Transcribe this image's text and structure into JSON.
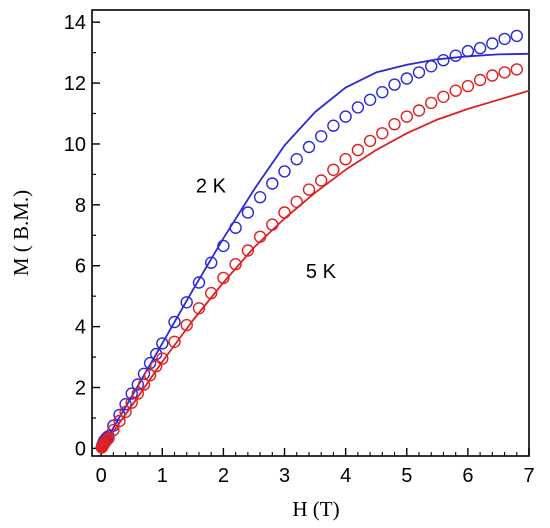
{
  "chart_data": {
    "type": "scatter",
    "xlabel": "H (T)",
    "ylabel": "M ( B.M.)",
    "xlim": [
      -0.15,
      7.0
    ],
    "ylim": [
      -0.25,
      14.4
    ],
    "x_ticks": [
      0,
      1,
      2,
      3,
      4,
      5,
      6,
      7
    ],
    "y_ticks": [
      0,
      2,
      4,
      6,
      8,
      10,
      12,
      14
    ],
    "grid": false,
    "annotations": [
      {
        "text": "2 K",
        "x": 1.55,
        "y": 8.4
      },
      {
        "text": "5 K",
        "x": 3.35,
        "y": 5.6
      }
    ],
    "series": [
      {
        "color": "#2a2ad6",
        "markers": [
          [
            0.01,
            0.05
          ],
          [
            0.02,
            0.1
          ],
          [
            0.03,
            0.15
          ],
          [
            0.04,
            0.2
          ],
          [
            0.05,
            0.25
          ],
          [
            0.07,
            0.3
          ],
          [
            0.09,
            0.35
          ],
          [
            0.12,
            0.4
          ],
          [
            0.2,
            0.75
          ],
          [
            0.3,
            1.1
          ],
          [
            0.4,
            1.45
          ],
          [
            0.5,
            1.8
          ],
          [
            0.6,
            2.1
          ],
          [
            0.7,
            2.45
          ],
          [
            0.8,
            2.8
          ],
          [
            0.9,
            3.1
          ],
          [
            1.0,
            3.45
          ],
          [
            1.2,
            4.15
          ],
          [
            1.4,
            4.8
          ],
          [
            1.6,
            5.45
          ],
          [
            1.8,
            6.1
          ],
          [
            2.0,
            6.65
          ],
          [
            2.2,
            7.25
          ],
          [
            2.4,
            7.75
          ],
          [
            2.6,
            8.25
          ],
          [
            2.8,
            8.7
          ],
          [
            3.0,
            9.1
          ],
          [
            3.2,
            9.5
          ],
          [
            3.4,
            9.9
          ],
          [
            3.6,
            10.25
          ],
          [
            3.8,
            10.6
          ],
          [
            4.0,
            10.9
          ],
          [
            4.2,
            11.2
          ],
          [
            4.4,
            11.45
          ],
          [
            4.6,
            11.7
          ],
          [
            4.8,
            11.95
          ],
          [
            5.0,
            12.15
          ],
          [
            5.2,
            12.35
          ],
          [
            5.4,
            12.55
          ],
          [
            5.6,
            12.75
          ],
          [
            5.8,
            12.9
          ],
          [
            6.0,
            13.05
          ],
          [
            6.2,
            13.15
          ],
          [
            6.4,
            13.3
          ],
          [
            6.6,
            13.45
          ],
          [
            6.8,
            13.55
          ]
        ],
        "curve": [
          [
            0.0,
            0.0
          ],
          [
            0.5,
            1.7
          ],
          [
            1.0,
            3.45
          ],
          [
            1.5,
            5.2
          ],
          [
            2.0,
            6.9
          ],
          [
            2.5,
            8.5
          ],
          [
            3.0,
            9.95
          ],
          [
            3.5,
            11.05
          ],
          [
            4.0,
            11.85
          ],
          [
            4.5,
            12.35
          ],
          [
            5.0,
            12.6
          ],
          [
            5.5,
            12.78
          ],
          [
            6.0,
            12.88
          ],
          [
            6.5,
            12.94
          ],
          [
            7.0,
            12.96
          ]
        ]
      },
      {
        "color": "#e02020",
        "markers": [
          [
            0.01,
            0.03
          ],
          [
            0.02,
            0.06
          ],
          [
            0.03,
            0.1
          ],
          [
            0.04,
            0.13
          ],
          [
            0.05,
            0.17
          ],
          [
            0.07,
            0.22
          ],
          [
            0.09,
            0.27
          ],
          [
            0.12,
            0.33
          ],
          [
            0.2,
            0.6
          ],
          [
            0.3,
            0.9
          ],
          [
            0.4,
            1.2
          ],
          [
            0.5,
            1.5
          ],
          [
            0.6,
            1.8
          ],
          [
            0.7,
            2.1
          ],
          [
            0.8,
            2.4
          ],
          [
            0.9,
            2.7
          ],
          [
            1.0,
            2.95
          ],
          [
            1.2,
            3.5
          ],
          [
            1.4,
            4.05
          ],
          [
            1.6,
            4.6
          ],
          [
            1.8,
            5.1
          ],
          [
            2.0,
            5.6
          ],
          [
            2.2,
            6.05
          ],
          [
            2.4,
            6.5
          ],
          [
            2.6,
            6.95
          ],
          [
            2.8,
            7.35
          ],
          [
            3.0,
            7.75
          ],
          [
            3.2,
            8.1
          ],
          [
            3.4,
            8.5
          ],
          [
            3.6,
            8.8
          ],
          [
            3.8,
            9.15
          ],
          [
            4.0,
            9.5
          ],
          [
            4.2,
            9.8
          ],
          [
            4.4,
            10.1
          ],
          [
            4.6,
            10.35
          ],
          [
            4.8,
            10.65
          ],
          [
            5.0,
            10.9
          ],
          [
            5.2,
            11.1
          ],
          [
            5.4,
            11.35
          ],
          [
            5.6,
            11.55
          ],
          [
            5.8,
            11.75
          ],
          [
            6.0,
            11.9
          ],
          [
            6.2,
            12.1
          ],
          [
            6.4,
            12.25
          ],
          [
            6.6,
            12.35
          ],
          [
            6.8,
            12.45
          ]
        ],
        "curve": [
          [
            0.0,
            0.0
          ],
          [
            0.5,
            1.4
          ],
          [
            1.0,
            2.85
          ],
          [
            1.5,
            4.2
          ],
          [
            2.0,
            5.45
          ],
          [
            2.5,
            6.6
          ],
          [
            3.0,
            7.55
          ],
          [
            3.5,
            8.4
          ],
          [
            4.0,
            9.15
          ],
          [
            4.5,
            9.8
          ],
          [
            5.0,
            10.35
          ],
          [
            5.5,
            10.8
          ],
          [
            6.0,
            11.15
          ],
          [
            6.5,
            11.45
          ],
          [
            7.0,
            11.75
          ]
        ]
      }
    ]
  }
}
